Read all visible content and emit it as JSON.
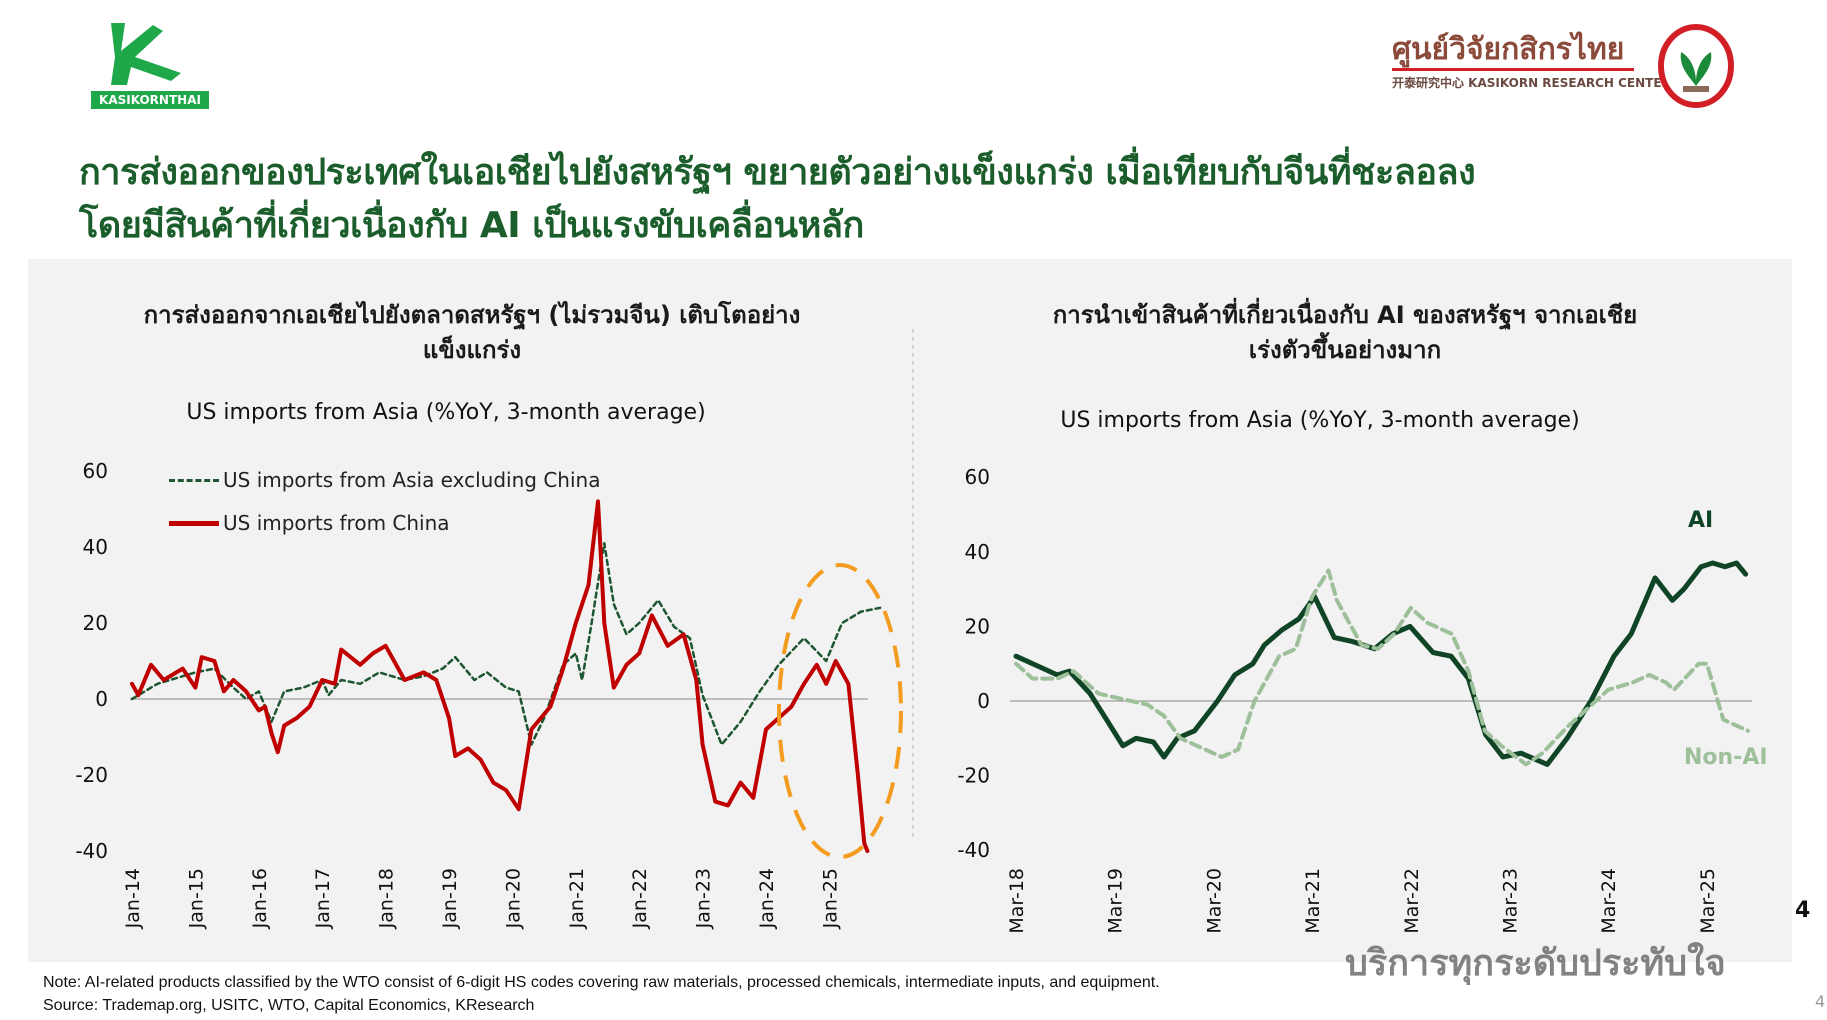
{
  "header": {
    "logo_left_text": "KASIKORNTHAI",
    "logo_right_thai": "ศูนย์วิจัยกสิกรไทย",
    "logo_right_sub": "开泰研究中心 KASIKORN RESEARCH CENTER",
    "title_line1": "การส่งออกของประเทศในเอเชียไปยังสหรัฐฯ ขยายตัวอย่างแข็งแกร่ง เมื่อเทียบกับจีนที่ชะลอลง",
    "title_line2": "โดยมีสินค้าที่เกี่ยวเนื่องกับ AI เป็นแรงขับเคลื่อนหลัก"
  },
  "colors": {
    "brand_green": "#1b5e2b",
    "china_red": "#c00000",
    "asia_green": "#1e5631",
    "ai_dark": "#0f4526",
    "nonai_light": "#9dbf99",
    "highlight_orange": "#f39c1f"
  },
  "chart_data": [
    {
      "type": "line",
      "title_line1": "การส่งออกจากเอเชียไปยังตลาดสหรัฐฯ (ไม่รวมจีน) เติบโตอย่าง",
      "title_line2": "แข็งแกร่ง",
      "subtitle": "US imports from Asia (%YoY, 3-month average)",
      "x_unit": "decimal year",
      "xticks": [
        "Jan-14",
        "Jan-15",
        "Jan-16",
        "Jan-17",
        "Jan-18",
        "Jan-19",
        "Jan-20",
        "Jan-21",
        "Jan-22",
        "Jan-23",
        "Jan-24",
        "Jan-25"
      ],
      "yticks": [
        "60",
        "40",
        "20",
        "0",
        "-20",
        "-40"
      ],
      "ylim": [
        -40,
        60
      ],
      "legend_placement": "top-left",
      "annotation": "dashed orange ellipse highlighting 2024-2025",
      "series": [
        {
          "name": "US imports from Asia excluding China",
          "style": "dashed",
          "points": [
            [
              2014.0,
              0
            ],
            [
              2014.4,
              4
            ],
            [
              2014.8,
              6
            ],
            [
              2015.0,
              7
            ],
            [
              2015.3,
              8
            ],
            [
              2015.6,
              3
            ],
            [
              2015.8,
              0
            ],
            [
              2016.0,
              2
            ],
            [
              2016.2,
              -6
            ],
            [
              2016.4,
              2
            ],
            [
              2016.7,
              3
            ],
            [
              2017.0,
              5
            ],
            [
              2017.1,
              1
            ],
            [
              2017.3,
              5
            ],
            [
              2017.6,
              4
            ],
            [
              2017.9,
              7
            ],
            [
              2018.3,
              5
            ],
            [
              2018.6,
              6
            ],
            [
              2018.9,
              8
            ],
            [
              2019.1,
              11
            ],
            [
              2019.4,
              5
            ],
            [
              2019.6,
              7
            ],
            [
              2019.9,
              3
            ],
            [
              2020.1,
              2
            ],
            [
              2020.3,
              -12
            ],
            [
              2020.5,
              -5
            ],
            [
              2020.8,
              9
            ],
            [
              2021.0,
              12
            ],
            [
              2021.1,
              5
            ],
            [
              2021.25,
              20
            ],
            [
              2021.45,
              41
            ],
            [
              2021.6,
              25
            ],
            [
              2021.8,
              17
            ],
            [
              2022.0,
              20
            ],
            [
              2022.3,
              26
            ],
            [
              2022.55,
              19
            ],
            [
              2022.8,
              16
            ],
            [
              2023.0,
              1
            ],
            [
              2023.3,
              -12
            ],
            [
              2023.6,
              -6
            ],
            [
              2023.9,
              2
            ],
            [
              2024.2,
              9
            ],
            [
              2024.6,
              16
            ],
            [
              2024.95,
              10
            ],
            [
              2025.2,
              20
            ],
            [
              2025.5,
              23
            ],
            [
              2025.8,
              24
            ]
          ]
        },
        {
          "name": "US imports from China",
          "style": "solid",
          "points": [
            [
              2014.0,
              4
            ],
            [
              2014.1,
              1
            ],
            [
              2014.3,
              9
            ],
            [
              2014.5,
              5
            ],
            [
              2014.8,
              8
            ],
            [
              2015.0,
              3
            ],
            [
              2015.1,
              11
            ],
            [
              2015.3,
              10
            ],
            [
              2015.45,
              2
            ],
            [
              2015.6,
              5
            ],
            [
              2015.8,
              2
            ],
            [
              2016.0,
              -3
            ],
            [
              2016.1,
              -2
            ],
            [
              2016.2,
              -9
            ],
            [
              2016.3,
              -14
            ],
            [
              2016.4,
              -7
            ],
            [
              2016.6,
              -5
            ],
            [
              2016.8,
              -2
            ],
            [
              2017.0,
              5
            ],
            [
              2017.2,
              4
            ],
            [
              2017.3,
              13
            ],
            [
              2017.6,
              9
            ],
            [
              2017.8,
              12
            ],
            [
              2018.0,
              14
            ],
            [
              2018.3,
              5
            ],
            [
              2018.6,
              7
            ],
            [
              2018.8,
              5
            ],
            [
              2019.0,
              -5
            ],
            [
              2019.1,
              -15
            ],
            [
              2019.3,
              -13
            ],
            [
              2019.5,
              -16
            ],
            [
              2019.7,
              -22
            ],
            [
              2019.9,
              -24
            ],
            [
              2020.1,
              -29
            ],
            [
              2020.3,
              -8
            ],
            [
              2020.6,
              -2
            ],
            [
              2020.8,
              8
            ],
            [
              2021.0,
              20
            ],
            [
              2021.2,
              30
            ],
            [
              2021.35,
              52
            ],
            [
              2021.45,
              20
            ],
            [
              2021.6,
              3
            ],
            [
              2021.8,
              9
            ],
            [
              2022.0,
              12
            ],
            [
              2022.2,
              22
            ],
            [
              2022.45,
              14
            ],
            [
              2022.7,
              17
            ],
            [
              2022.9,
              5
            ],
            [
              2023.0,
              -12
            ],
            [
              2023.2,
              -27
            ],
            [
              2023.4,
              -28
            ],
            [
              2023.6,
              -22
            ],
            [
              2023.8,
              -26
            ],
            [
              2024.0,
              -8
            ],
            [
              2024.2,
              -5
            ],
            [
              2024.4,
              -2
            ],
            [
              2024.6,
              4
            ],
            [
              2024.8,
              9
            ],
            [
              2024.95,
              4
            ],
            [
              2025.1,
              10
            ],
            [
              2025.3,
              4
            ],
            [
              2025.45,
              -20
            ],
            [
              2025.55,
              -38
            ],
            [
              2025.6,
              -40
            ]
          ]
        }
      ]
    },
    {
      "type": "line",
      "title_line1": "การนำเข้าสินค้าที่เกี่ยวเนื่องกับ AI ของสหรัฐฯ จากเอเชีย",
      "title_line2": "เร่งตัวขึ้นอย่างมาก",
      "subtitle": "US imports from Asia (%YoY, 3-month average)",
      "x_unit": "months since Mar-18",
      "xticks": [
        "Mar-18",
        "Mar-19",
        "Mar-20",
        "Mar-21",
        "Mar-22",
        "Mar-23",
        "Mar-24",
        "Mar-25"
      ],
      "yticks": [
        "60",
        "40",
        "20",
        "0",
        "-20",
        "-40"
      ],
      "ylim": [
        -40,
        60
      ],
      "series": [
        {
          "name": "AI",
          "style": "solid",
          "points": [
            [
              0,
              12
            ],
            [
              3,
              9
            ],
            [
              5,
              7
            ],
            [
              6.5,
              8
            ],
            [
              9,
              2
            ],
            [
              11,
              -5
            ],
            [
              13,
              -12
            ],
            [
              14.6,
              -10
            ],
            [
              16.7,
              -11
            ],
            [
              18,
              -15
            ],
            [
              19.6,
              -10
            ],
            [
              21.7,
              -8
            ],
            [
              24.5,
              0
            ],
            [
              26.6,
              7
            ],
            [
              28.8,
              10
            ],
            [
              30.2,
              15
            ],
            [
              32.3,
              19
            ],
            [
              34.4,
              22
            ],
            [
              36.3,
              28
            ],
            [
              38.7,
              17
            ],
            [
              40.8,
              16
            ],
            [
              43.6,
              14
            ],
            [
              45.8,
              18
            ],
            [
              47.9,
              20
            ],
            [
              50.7,
              13
            ],
            [
              52.9,
              12
            ],
            [
              55,
              6
            ],
            [
              57.1,
              -9
            ],
            [
              59.2,
              -15
            ],
            [
              61.4,
              -14
            ],
            [
              64.6,
              -17
            ],
            [
              67,
              -10
            ],
            [
              69.9,
              0
            ],
            [
              72.7,
              12
            ],
            [
              74.8,
              18
            ],
            [
              77.7,
              33
            ],
            [
              79.8,
              27
            ],
            [
              81.2,
              30
            ],
            [
              83.3,
              36
            ],
            [
              84.7,
              37
            ],
            [
              86.2,
              36
            ],
            [
              87.6,
              37
            ],
            [
              88.7,
              34
            ]
          ]
        },
        {
          "name": "Non-AI",
          "style": "dashed",
          "points": [
            [
              0,
              10
            ],
            [
              2,
              6
            ],
            [
              5,
              6
            ],
            [
              7,
              8
            ],
            [
              10,
              2
            ],
            [
              12,
              1
            ],
            [
              16,
              -1
            ],
            [
              18,
              -4
            ],
            [
              20,
              -10
            ],
            [
              22,
              -12
            ],
            [
              25,
              -15
            ],
            [
              27,
              -13
            ],
            [
              29,
              0
            ],
            [
              32,
              12
            ],
            [
              34,
              14
            ],
            [
              36,
              28
            ],
            [
              38,
              35
            ],
            [
              39,
              27
            ],
            [
              42,
              15
            ],
            [
              44,
              14
            ],
            [
              46,
              18
            ],
            [
              48,
              25
            ],
            [
              50,
              21
            ],
            [
              53,
              18
            ],
            [
              55,
              8
            ],
            [
              57,
              -8
            ],
            [
              59,
              -12
            ],
            [
              62,
              -17
            ],
            [
              64,
              -14
            ],
            [
              67,
              -7
            ],
            [
              70,
              -1
            ],
            [
              72,
              3
            ],
            [
              75,
              5
            ],
            [
              77,
              7
            ],
            [
              79,
              5
            ],
            [
              80,
              3
            ],
            [
              83,
              10
            ],
            [
              84,
              10
            ],
            [
              86,
              -5
            ],
            [
              89,
              -8
            ]
          ]
        }
      ]
    }
  ],
  "footer": {
    "note": "Note: AI-related products classified by the WTO consist of 6-digit HS codes covering raw materials, processed chemicals, intermediate inputs, and equipment.",
    "source": "Source: Trademap.org, USITC, WTO, Capital Economics, KResearch",
    "watermark": "บริการทุกระดับประทับใจ",
    "page_number": "4",
    "page_number_small": "4"
  }
}
